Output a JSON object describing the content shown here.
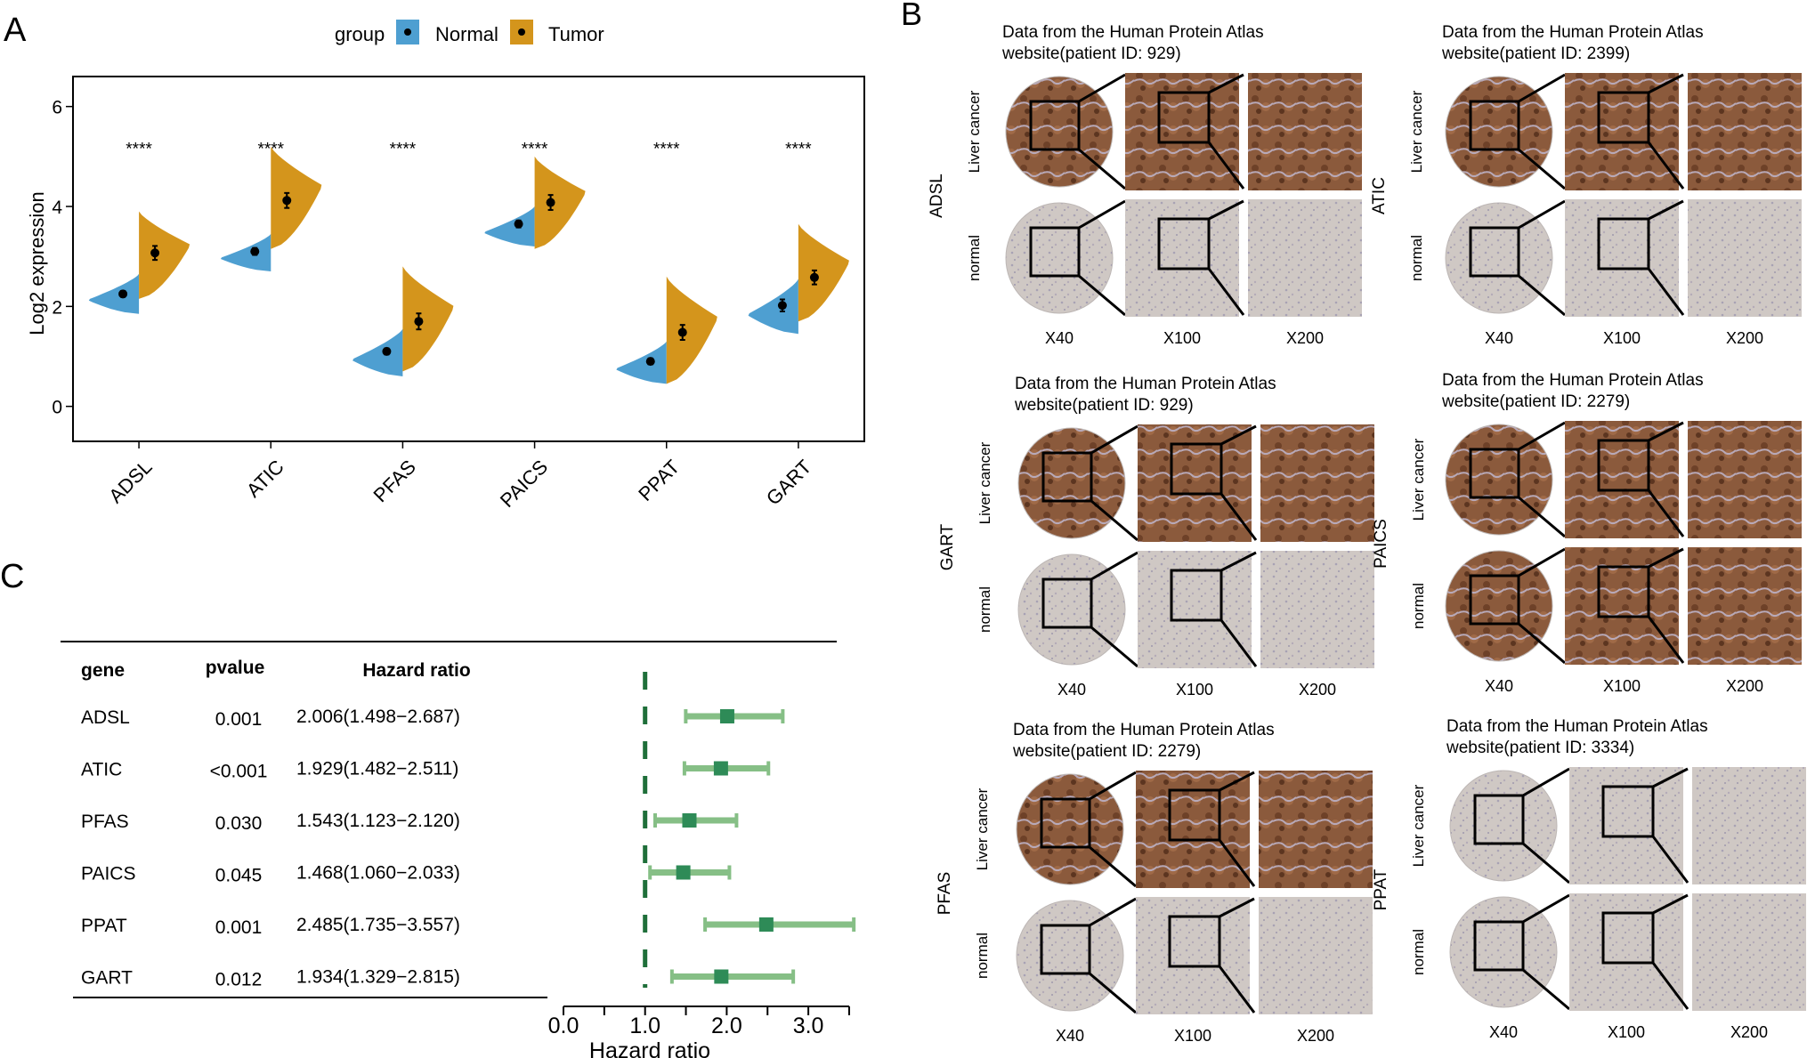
{
  "colors": {
    "normal": "#4E9FD1",
    "tumor": "#D4951C",
    "forest_point": "#2E8B57",
    "forest_ci": "#86BF86",
    "ref_line": "#1F6F3A",
    "tissue_brown": "#8B5A3C",
    "tissue_normal": "#CFC8C4"
  },
  "panel_a": {
    "label": "A",
    "legend": {
      "title": "group",
      "normal_label": "Normal",
      "tumor_label": "Tumor"
    },
    "chart_data": {
      "type": "violin",
      "ylabel": "Log2 expression",
      "ylim": [
        -0.7,
        6.6
      ],
      "yticks": [
        0,
        2,
        4,
        6
      ],
      "categories": [
        "ADSL",
        "ATIC",
        "PFAS",
        "PAICS",
        "PPAT",
        "GART"
      ],
      "significance": [
        "****",
        "****",
        "****",
        "****",
        "****",
        "****"
      ],
      "series": [
        {
          "name": "Normal",
          "means": [
            2.25,
            3.1,
            1.1,
            3.65,
            0.9,
            2.02
          ],
          "ci": [
            0.06,
            0.07,
            0.06,
            0.07,
            0.06,
            0.12
          ],
          "ranges": [
            [
              1.85,
              2.65
            ],
            [
              2.7,
              3.45
            ],
            [
              0.6,
              1.55
            ],
            [
              3.2,
              4.0
            ],
            [
              0.45,
              1.3
            ],
            [
              1.45,
              2.55
            ]
          ]
        },
        {
          "name": "Tumor",
          "means": [
            3.07,
            4.12,
            1.7,
            4.08,
            1.48,
            2.58
          ],
          "ci": [
            0.14,
            0.15,
            0.16,
            0.15,
            0.15,
            0.14
          ],
          "ranges": [
            [
              2.15,
              3.9
            ],
            [
              3.15,
              5.2
            ],
            [
              0.7,
              2.8
            ],
            [
              3.15,
              5.0
            ],
            [
              0.45,
              2.6
            ],
            [
              1.7,
              3.65
            ]
          ]
        }
      ]
    }
  },
  "panel_b": {
    "label": "B",
    "mag_labels": [
      "X40",
      "X100",
      "X200"
    ],
    "row_labels": [
      "Liver cancer",
      "normal"
    ],
    "blocks": [
      {
        "gene": "ADSL",
        "source_line1": "Data from the Human Protein Atlas",
        "source_line2": "website(patient ID: 929)"
      },
      {
        "gene": "ATIC",
        "source_line1": "Data from the Human Protein Atlas",
        "source_line2": "website(patient ID: 2399)"
      },
      {
        "gene": "GART",
        "source_line1": "Data from the Human Protein Atlas",
        "source_line2": "website(patient ID: 929)"
      },
      {
        "gene": "PAICS",
        "source_line1": "Data from the Human Protein Atlas",
        "source_line2": "website(patient ID: 2279)"
      },
      {
        "gene": "PFAS",
        "source_line1": "Data from the Human Protein Atlas",
        "source_line2": "website(patient ID: 2279)"
      },
      {
        "gene": "PPAT",
        "source_line1": "Data from the Human Protein Atlas",
        "source_line2": "website(patient ID: 3334)"
      }
    ]
  },
  "panel_c": {
    "label": "C",
    "headers": {
      "gene": "gene",
      "pvalue": "pvalue",
      "hr": "Hazard ratio"
    },
    "rows": [
      {
        "gene": "ADSL",
        "pvalue": "0.001",
        "hr_text": "2.006(1.498−2.687)"
      },
      {
        "gene": "ATIC",
        "pvalue": "<0.001",
        "hr_text": "1.929(1.482−2.511)"
      },
      {
        "gene": "PFAS",
        "pvalue": "0.030",
        "hr_text": "1.543(1.123−2.120)"
      },
      {
        "gene": "PAICS",
        "pvalue": "0.045",
        "hr_text": "1.468(1.060−2.033)"
      },
      {
        "gene": "PPAT",
        "pvalue": "0.001",
        "hr_text": "2.485(1.735−3.557)"
      },
      {
        "gene": "GART",
        "pvalue": "0.012",
        "hr_text": "1.934(1.329−2.815)"
      }
    ],
    "chart_data": {
      "type": "forest",
      "xlabel": "Hazard ratio",
      "xlim": [
        0,
        3.5
      ],
      "xticks": [
        0.0,
        1.0,
        2.0,
        3.0
      ],
      "xtick_labels": [
        "0.0",
        "1.0",
        "2.0",
        "3.0"
      ],
      "reference": 1.0,
      "estimates": [
        2.006,
        1.929,
        1.543,
        1.468,
        2.485,
        1.934
      ],
      "lower": [
        1.498,
        1.482,
        1.123,
        1.06,
        1.735,
        1.329
      ],
      "upper": [
        2.687,
        2.511,
        2.12,
        2.033,
        3.557,
        2.815
      ]
    }
  }
}
